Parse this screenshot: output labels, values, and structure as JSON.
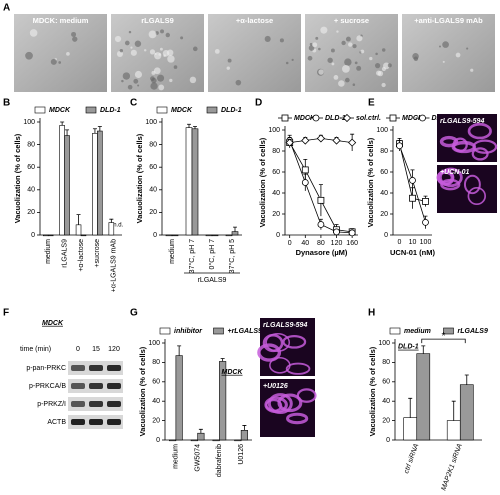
{
  "figure": {
    "panel_labels": [
      "A",
      "B",
      "C",
      "D",
      "E",
      "F",
      "G",
      "H"
    ]
  },
  "micrographs": {
    "labels": [
      "MDCK: medium",
      "rLGALS9",
      "+α-lactose",
      "+ sucrose",
      "+anti-LGALS9 mAb"
    ]
  },
  "blot": {
    "cell_line": "MDCK",
    "time_label": "time (min)",
    "times": [
      0,
      15,
      120
    ],
    "rows": [
      "p-pan-PRKC",
      "p-PRKCA/B",
      "p-PRKZ/I",
      "ACTB"
    ]
  },
  "chart_data": [
    {
      "type": "bar",
      "ylabel": "Vacuolization (% of cells)",
      "categories": [
        "medium",
        "rLGALS9",
        "+α-lactose",
        "+sucrose",
        "+α-LGALS9 mAb"
      ],
      "series": [
        {
          "name": "MDCK",
          "color": "#ffffff",
          "values": [
            0,
            97,
            9,
            90,
            11
          ],
          "errors": [
            0,
            3,
            9,
            4,
            3
          ]
        },
        {
          "name": "DLD-1",
          "color": "#999999",
          "values": [
            0,
            88,
            0,
            92,
            null
          ],
          "errors": [
            0,
            5,
            0,
            4,
            null
          ],
          "value_labels": [
            null,
            null,
            null,
            null,
            "n.d."
          ]
        }
      ],
      "ylim": [
        0,
        100
      ],
      "yticks": [
        0,
        20,
        40,
        60,
        80,
        100
      ]
    },
    {
      "type": "bar",
      "ylabel": "Vacuolization (% of cells)",
      "categories": [
        "medium",
        "37°C, pH 7",
        "0°C, pH 7",
        "37°C, pH 5"
      ],
      "group_label": "rLGALS9",
      "series": [
        {
          "name": "MDCK",
          "color": "#ffffff",
          "values": [
            0,
            95,
            0,
            0
          ],
          "errors": [
            0,
            3,
            0,
            0
          ]
        },
        {
          "name": "DLD-1",
          "color": "#999999",
          "values": [
            0,
            94,
            0,
            3
          ],
          "errors": [
            0,
            2,
            0,
            4
          ]
        }
      ],
      "ylim": [
        0,
        100
      ],
      "yticks": [
        0,
        20,
        40,
        60,
        80,
        100
      ]
    },
    {
      "type": "line",
      "ylabel": "Vacuolization (% of cells)",
      "xlabel": "Dynasore (µM)",
      "x": [
        0,
        40,
        80,
        120,
        160
      ],
      "xlim": [
        -12,
        175
      ],
      "xticks": [
        0,
        40,
        80,
        120,
        160
      ],
      "series": [
        {
          "name": "MDCK",
          "color": "#000000",
          "marker": "square",
          "values": [
            88,
            62,
            33,
            5,
            3
          ],
          "errors": [
            5,
            10,
            15,
            5,
            3
          ]
        },
        {
          "name": "DLD-1",
          "color": "#000000",
          "marker": "circle",
          "values": [
            90,
            50,
            10,
            3,
            2
          ],
          "errors": [
            5,
            8,
            5,
            2,
            2
          ]
        },
        {
          "name": "sol.ctrl.",
          "color": "#000000",
          "marker": "diamond",
          "values": [
            88,
            90,
            92,
            90,
            88
          ],
          "errors": [
            3,
            3,
            3,
            3,
            8
          ]
        }
      ],
      "ylim": [
        0,
        100
      ],
      "yticks": [
        0,
        20,
        40,
        60,
        80,
        100
      ]
    },
    {
      "type": "line",
      "ylabel": "Vacuolization (% of cells)",
      "xlabel": "UCN-01 (nM)",
      "categories": [
        "0",
        "10",
        "100"
      ],
      "series": [
        {
          "name": "MDCK",
          "color": "#000000",
          "marker": "square",
          "values": [
            87,
            35,
            32
          ],
          "errors": [
            5,
            10,
            5
          ]
        },
        {
          "name": "DLD-1",
          "color": "#000000",
          "marker": "circle",
          "values": [
            85,
            52,
            12
          ],
          "errors": [
            5,
            10,
            6
          ]
        }
      ],
      "ylim": [
        0,
        100
      ],
      "yticks": [
        0,
        20,
        40,
        60,
        80,
        100
      ],
      "image_labels": [
        "rLGALS9-594",
        "+UCN-01"
      ]
    },
    {
      "type": "bar",
      "ylabel": "Vacuolization (% of cells)",
      "categories": [
        "medium",
        "GW5074",
        "dabrafenib",
        "U0126"
      ],
      "series": [
        {
          "name": "inhibitor",
          "color": "#ffffff",
          "values": [
            0,
            0,
            0,
            0
          ],
          "errors": [
            0,
            0,
            0,
            0
          ]
        },
        {
          "name": "+rLGALS9",
          "color": "#999999",
          "values": [
            87,
            7,
            81,
            10
          ],
          "errors": [
            10,
            4,
            3,
            5
          ]
        }
      ],
      "ylim": [
        0,
        100
      ],
      "yticks": [
        0,
        20,
        40,
        60,
        80,
        100
      ],
      "annotations": [
        "MDCK"
      ],
      "image_labels": [
        "rLGALS9-594",
        "+U0126"
      ]
    },
    {
      "type": "bar",
      "ylabel": "Vacuolization (% of cells)",
      "categories": [
        "ctrl siRNA",
        "MAP2K1 siRNA"
      ],
      "series": [
        {
          "name": "medium",
          "color": "#ffffff",
          "values": [
            23,
            20
          ],
          "errors": [
            20,
            20
          ]
        },
        {
          "name": "rLGALS9",
          "color": "#999999",
          "values": [
            89,
            57
          ],
          "errors": [
            8,
            10
          ]
        }
      ],
      "ylim": [
        0,
        100
      ],
      "yticks": [
        0,
        20,
        40,
        60,
        80,
        100
      ],
      "annotations": [
        "DLD-1",
        "*"
      ]
    }
  ]
}
